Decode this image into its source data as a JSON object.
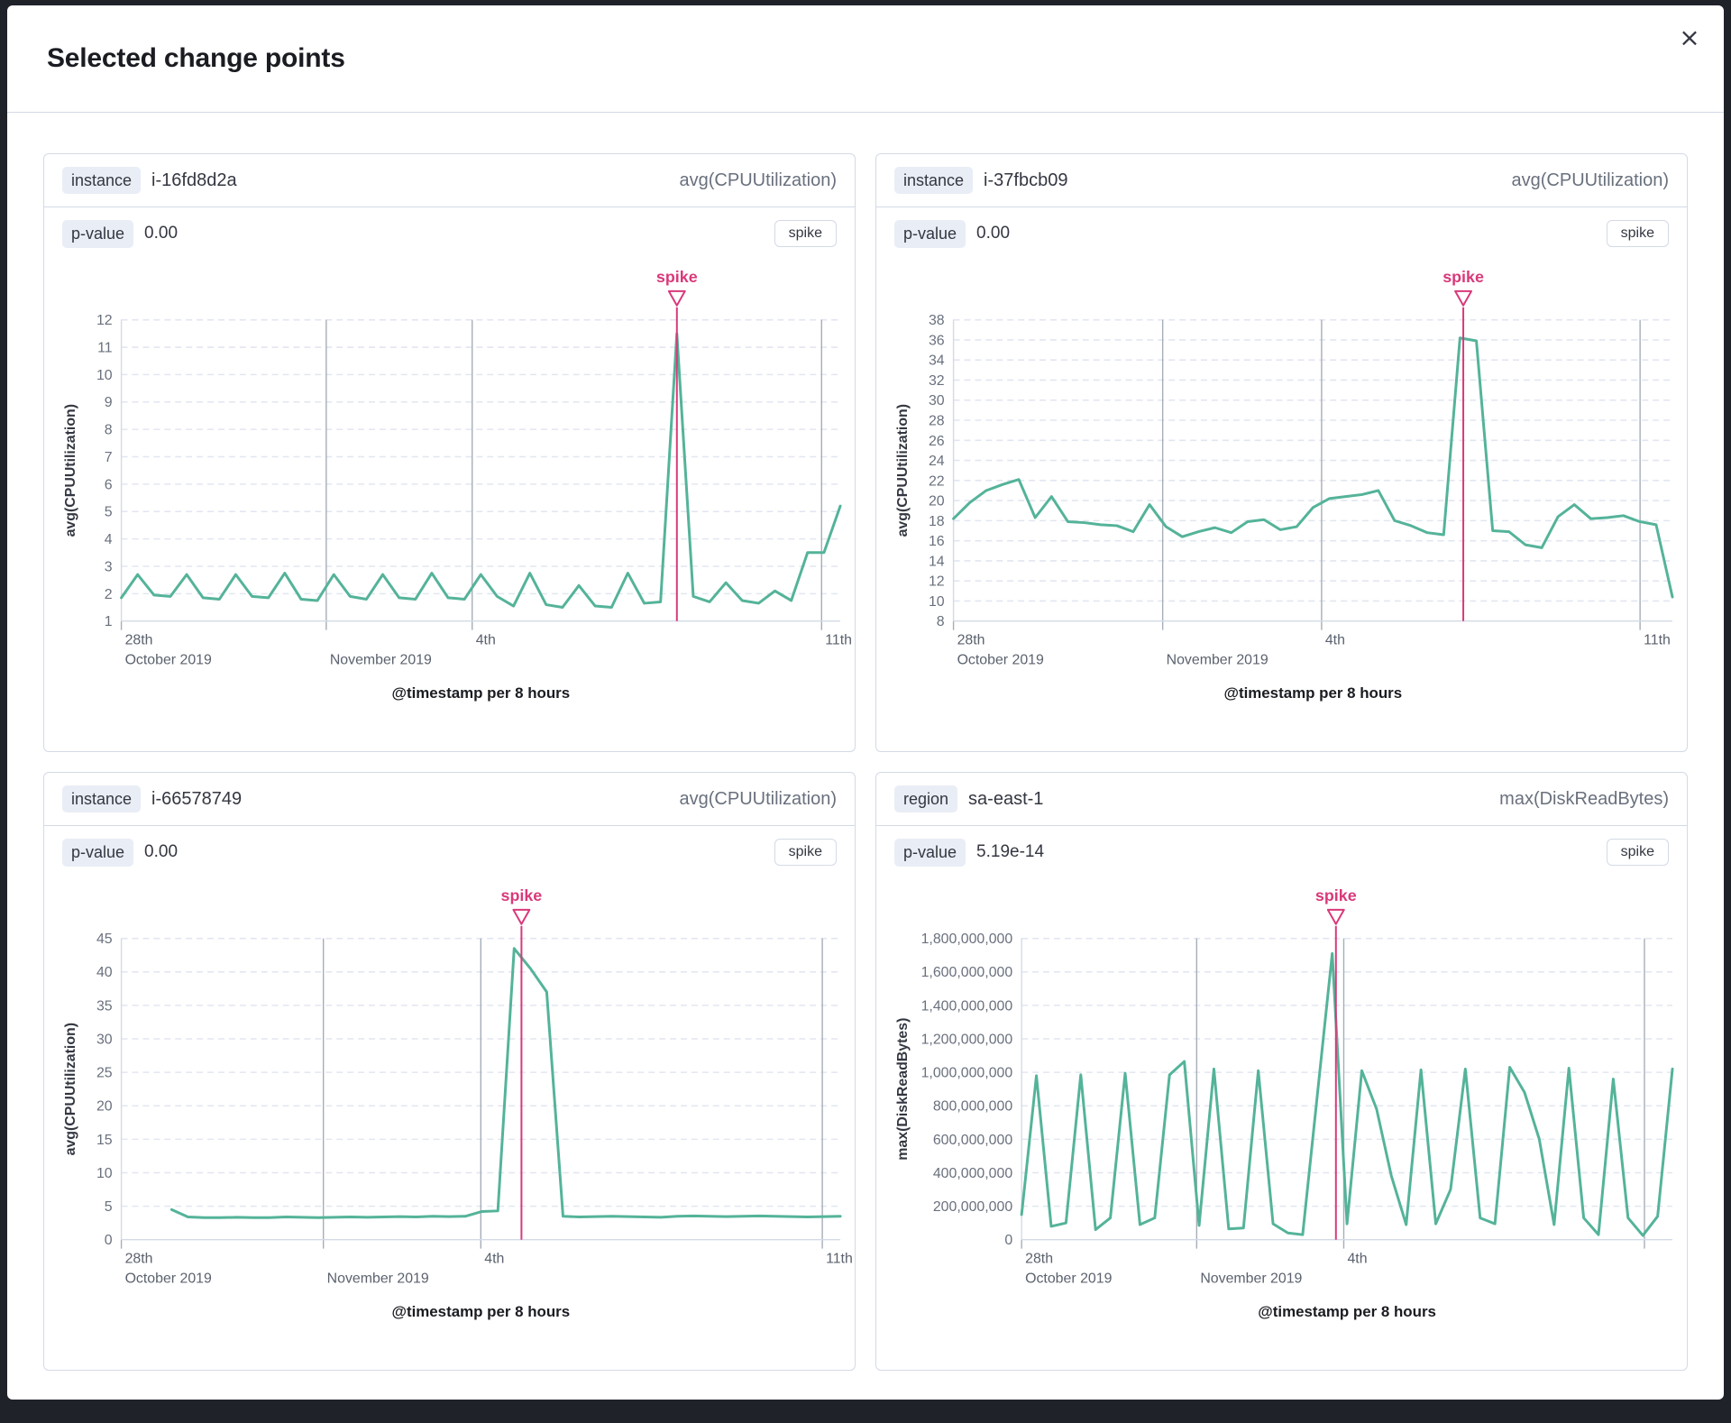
{
  "modal": {
    "title": "Selected change points",
    "close_icon": "×"
  },
  "colors": {
    "series": "#54b399",
    "spike": "#d9397a",
    "grid_dashed": "#e2e6f0",
    "grid_date": "#a6adb9",
    "axis_border": "#d3dae6",
    "tick_text": "#69707d",
    "date_text": "#5b626e",
    "axis_title": "#1a1c21",
    "ylabel_text": "#343741"
  },
  "panels": [
    {
      "field_label": "instance",
      "field_value": "i-16fd8d2a",
      "metric": "avg(CPUUtilization)",
      "p_label": "p-value",
      "p_value": "0.00",
      "spike_label": "spike"
    },
    {
      "field_label": "instance",
      "field_value": "i-37fbcb09",
      "metric": "avg(CPUUtilization)",
      "p_label": "p-value",
      "p_value": "0.00",
      "spike_label": "spike"
    },
    {
      "field_label": "instance",
      "field_value": "i-66578749",
      "metric": "avg(CPUUtilization)",
      "p_label": "p-value",
      "p_value": "0.00",
      "spike_label": "spike"
    },
    {
      "field_label": "region",
      "field_value": "sa-east-1",
      "metric": "max(DiskReadBytes)",
      "p_label": "p-value",
      "p_value": "5.19e-14",
      "spike_label": "spike"
    }
  ],
  "chart_data": [
    {
      "type": "line",
      "ylabel": "avg(CPUUtilization)",
      "xlabel": "@timestamp per 8 hours",
      "ylim": [
        1,
        12
      ],
      "ytick_step": 1,
      "y_format": "plain",
      "margin_left": 72,
      "grid": true,
      "legend": false,
      "annotation": {
        "type": "spike",
        "label": "spike",
        "index": 34,
        "line_offset": 0.0
      },
      "xticks": [
        {
          "frac": 0.0,
          "line1": "28th",
          "line2": "October 2019",
          "line": "tick"
        },
        {
          "frac": 0.285,
          "line1": "",
          "line2": "November 2019",
          "line": "full"
        },
        {
          "frac": 0.488,
          "line1": "4th",
          "line2": "",
          "line": "full"
        },
        {
          "frac": 0.974,
          "line1": "11th",
          "line2": "",
          "line": "full"
        }
      ],
      "x0_frac": 0.0,
      "values": [
        1.85,
        2.7,
        1.95,
        1.9,
        2.7,
        1.85,
        1.8,
        2.7,
        1.9,
        1.85,
        2.75,
        1.8,
        1.75,
        2.7,
        1.9,
        1.8,
        2.7,
        1.85,
        1.8,
        2.75,
        1.85,
        1.8,
        2.7,
        1.9,
        1.55,
        2.75,
        1.6,
        1.5,
        2.3,
        1.55,
        1.5,
        2.75,
        1.65,
        1.7,
        11.5,
        1.9,
        1.7,
        2.4,
        1.75,
        1.65,
        2.1,
        1.75,
        3.5,
        3.5,
        5.2
      ]
    },
    {
      "type": "line",
      "ylabel": "avg(CPUUtilization)",
      "xlabel": "@timestamp per 8 hours",
      "ylim": [
        8,
        38
      ],
      "ytick_step": 2,
      "y_format": "plain",
      "margin_left": 72,
      "grid": true,
      "legend": false,
      "annotation": {
        "type": "spike",
        "label": "spike",
        "index": 31,
        "line_offset": 0.2
      },
      "xticks": [
        {
          "frac": 0.0,
          "line1": "28th",
          "line2": "October 2019",
          "line": "tick"
        },
        {
          "frac": 0.291,
          "line1": "",
          "line2": "November 2019",
          "line": "full"
        },
        {
          "frac": 0.512,
          "line1": "4th",
          "line2": "",
          "line": "full"
        },
        {
          "frac": 0.955,
          "line1": "11th",
          "line2": "",
          "line": "full"
        }
      ],
      "x0_frac": 0.0,
      "values": [
        18.2,
        19.8,
        21.0,
        21.6,
        22.1,
        18.3,
        20.4,
        17.9,
        17.8,
        17.6,
        17.5,
        16.9,
        19.6,
        17.4,
        16.4,
        16.9,
        17.3,
        16.8,
        17.9,
        18.1,
        17.1,
        17.4,
        19.3,
        20.2,
        20.4,
        20.6,
        21.0,
        18.0,
        17.5,
        16.8,
        16.6,
        36.2,
        35.9,
        17.0,
        16.9,
        15.6,
        15.3,
        18.4,
        19.6,
        18.2,
        18.3,
        18.5,
        17.9,
        17.6,
        10.4
      ]
    },
    {
      "type": "line",
      "ylabel": "avg(CPUUtilization)",
      "xlabel": "@timestamp per 8 hours",
      "ylim": [
        0,
        45
      ],
      "ytick_step": 5,
      "y_format": "plain",
      "margin_left": 72,
      "grid": true,
      "legend": false,
      "annotation": {
        "type": "spike",
        "label": "spike",
        "index": 21,
        "line_offset": 0.45
      },
      "xticks": [
        {
          "frac": 0.0,
          "line1": "28th",
          "line2": "October 2019",
          "line": "tick"
        },
        {
          "frac": 0.281,
          "line1": "",
          "line2": "November 2019",
          "line": "full"
        },
        {
          "frac": 0.5,
          "line1": "4th",
          "line2": "",
          "line": "full"
        },
        {
          "frac": 0.975,
          "line1": "11th",
          "line2": "",
          "line": "full"
        }
      ],
      "x0_frac": 0.07,
      "values": [
        4.5,
        3.4,
        3.3,
        3.3,
        3.35,
        3.3,
        3.3,
        3.4,
        3.35,
        3.3,
        3.35,
        3.4,
        3.35,
        3.4,
        3.45,
        3.4,
        3.5,
        3.45,
        3.5,
        4.2,
        4.3,
        43.5,
        40.5,
        37.0,
        3.5,
        3.4,
        3.45,
        3.5,
        3.45,
        3.4,
        3.35,
        3.5,
        3.55,
        3.5,
        3.45,
        3.5,
        3.55,
        3.5,
        3.45,
        3.4,
        3.45,
        3.5
      ]
    },
    {
      "type": "line",
      "ylabel": "max(DiskReadBytes)",
      "xlabel": "@timestamp per 8 hours",
      "ylim": [
        0,
        1800000000
      ],
      "ytick_step": 200000000,
      "y_format": "comma",
      "margin_left": 148,
      "grid": true,
      "legend": false,
      "annotation": {
        "type": "spike",
        "label": "spike",
        "index": 21,
        "line_offset": 0.25
      },
      "xticks": [
        {
          "frac": 0.0,
          "line1": "28th",
          "line2": "October 2019",
          "line": "tick"
        },
        {
          "frac": 0.269,
          "line1": "",
          "line2": "November 2019",
          "line": "full"
        },
        {
          "frac": 0.495,
          "line1": "4th",
          "line2": "",
          "line": "full"
        },
        {
          "frac": 0.957,
          "line1": "",
          "line2": "",
          "line": "full"
        }
      ],
      "x0_frac": 0.0,
      "values": [
        150000000,
        980000000,
        80000000,
        100000000,
        985000000,
        60000000,
        130000000,
        995000000,
        90000000,
        130000000,
        985000000,
        1065000000,
        85000000,
        1020000000,
        65000000,
        70000000,
        1010000000,
        95000000,
        40000000,
        30000000,
        870000000,
        1710000000,
        95000000,
        1010000000,
        780000000,
        380000000,
        90000000,
        1015000000,
        95000000,
        300000000,
        1020000000,
        130000000,
        95000000,
        1030000000,
        880000000,
        600000000,
        90000000,
        1025000000,
        130000000,
        30000000,
        960000000,
        130000000,
        25000000,
        140000000,
        1020000000
      ]
    }
  ]
}
